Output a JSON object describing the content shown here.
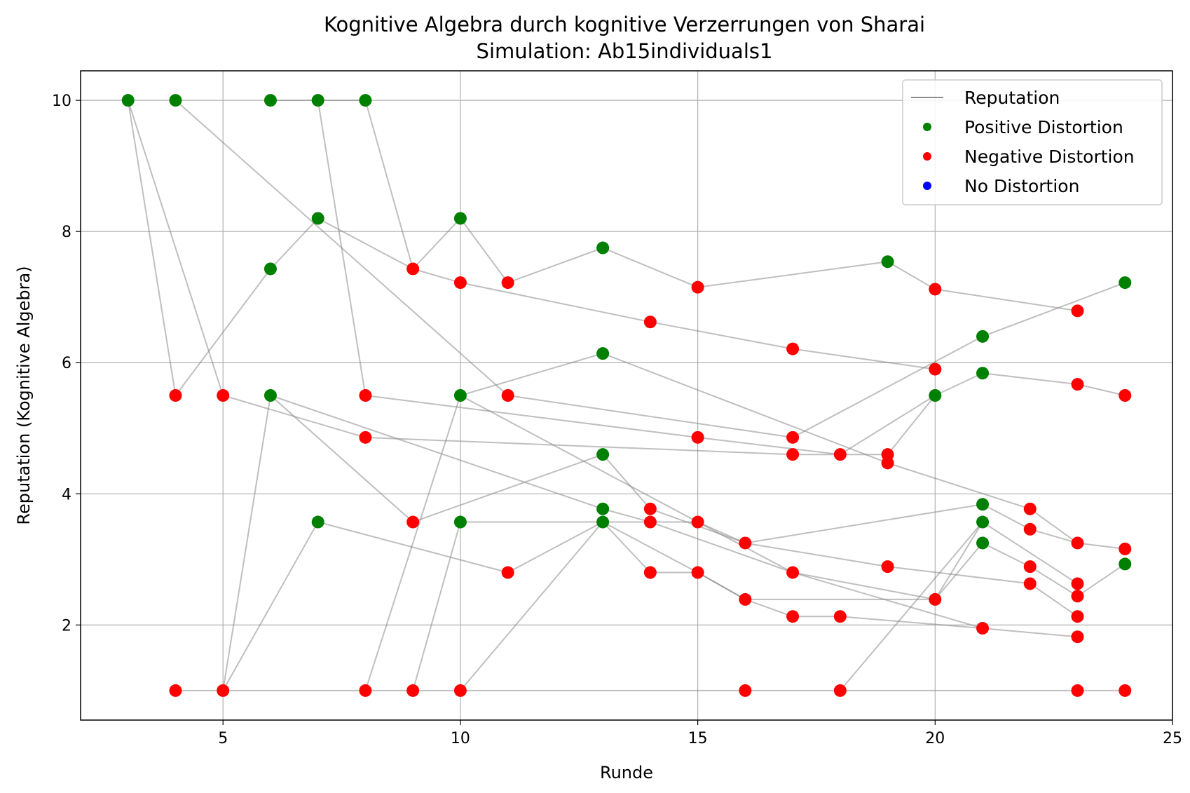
{
  "chart_data": {
    "type": "scatter",
    "title": "Kognitive Algebra durch kognitive Verzerrungen von Sharai",
    "subtitle": "Simulation: Ab15individuals1",
    "xlabel": "Runde",
    "ylabel": "Reputation (Kognitive Algebra)",
    "xlim": [
      2,
      25
    ],
    "ylim": [
      0.55,
      10.45
    ],
    "xticks": [
      5,
      10,
      15,
      20,
      25
    ],
    "yticks": [
      2,
      4,
      6,
      8,
      10
    ],
    "grid": true,
    "legend_position": "top-right",
    "legend": [
      {
        "label": "Reputation",
        "kind": "line",
        "color": "#808080"
      },
      {
        "label": "Positive Distortion",
        "kind": "dot",
        "color": "#008000"
      },
      {
        "label": "Negative Distortion",
        "kind": "dot",
        "color": "#ff0000"
      },
      {
        "label": "No Distortion",
        "kind": "dot",
        "color": "#0000ff"
      }
    ],
    "colors": {
      "positive": "#008000",
      "negative": "#ff0000",
      "none": "#0000ff",
      "line": "#808080"
    },
    "trajectories": [
      [
        [
          3,
          10
        ],
        [
          4,
          5.5
        ],
        [
          6,
          7.43
        ],
        [
          7,
          8.2
        ],
        [
          9,
          7.43
        ],
        [
          10,
          8.2
        ],
        [
          11,
          7.22
        ],
        [
          13,
          7.75
        ],
        [
          15,
          7.15
        ],
        [
          19,
          7.54
        ],
        [
          20,
          7.12
        ],
        [
          23,
          6.79
        ]
      ],
      [
        [
          3,
          10
        ],
        [
          5,
          5.5
        ],
        [
          8,
          4.86
        ],
        [
          17,
          4.6
        ],
        [
          18,
          4.6
        ],
        [
          19,
          4.6
        ],
        [
          20,
          5.5
        ],
        [
          21,
          5.84
        ],
        [
          23,
          5.67
        ],
        [
          24,
          5.5
        ]
      ],
      [
        [
          4,
          10
        ],
        [
          11,
          5.5
        ],
        [
          17,
          4.86
        ],
        [
          21,
          6.4
        ],
        [
          24,
          7.22
        ]
      ],
      [
        [
          6,
          10
        ],
        [
          7,
          10
        ],
        [
          8,
          10
        ],
        [
          9,
          7.43
        ],
        [
          10,
          7.22
        ],
        [
          14,
          6.62
        ],
        [
          17,
          6.21
        ],
        [
          20,
          5.9
        ]
      ],
      [
        [
          7,
          10
        ],
        [
          8,
          5.5
        ],
        [
          15,
          4.86
        ],
        [
          18,
          4.6
        ],
        [
          20,
          5.5
        ]
      ],
      [
        [
          5,
          1
        ],
        [
          6,
          5.5
        ],
        [
          9,
          3.57
        ],
        [
          13,
          4.6
        ],
        [
          14,
          3.77
        ],
        [
          16,
          3.25
        ],
        [
          21,
          3.84
        ],
        [
          22,
          3.46
        ],
        [
          23,
          3.25
        ],
        [
          24,
          3.16
        ]
      ],
      [
        [
          6,
          5.5
        ],
        [
          13,
          3.77
        ],
        [
          14,
          3.57
        ],
        [
          17,
          2.8
        ],
        [
          21,
          1.95
        ],
        [
          23,
          1.82
        ]
      ],
      [
        [
          5,
          1
        ],
        [
          7,
          3.57
        ],
        [
          11,
          2.8
        ],
        [
          13,
          3.57
        ],
        [
          14,
          2.8
        ],
        [
          15,
          2.8
        ],
        [
          16,
          2.39
        ],
        [
          17,
          2.13
        ],
        [
          18,
          2.13
        ],
        [
          21,
          1.95
        ]
      ],
      [
        [
          8,
          1
        ],
        [
          10,
          5.5
        ],
        [
          13,
          6.14
        ],
        [
          19,
          4.47
        ],
        [
          22,
          3.77
        ],
        [
          23,
          3.25
        ]
      ],
      [
        [
          9,
          1
        ],
        [
          10,
          3.57
        ],
        [
          15,
          3.57
        ],
        [
          16,
          3.25
        ],
        [
          19,
          2.89
        ],
        [
          22,
          2.63
        ],
        [
          23,
          2.13
        ]
      ],
      [
        [
          10,
          1
        ],
        [
          13,
          3.57
        ],
        [
          15,
          2.8
        ],
        [
          16,
          2.39
        ],
        [
          20,
          2.39
        ],
        [
          21,
          3.57
        ],
        [
          23,
          2.63
        ]
      ],
      [
        [
          10,
          5.5
        ],
        [
          15,
          3.57
        ],
        [
          17,
          2.8
        ],
        [
          20,
          2.39
        ],
        [
          21,
          3.25
        ],
        [
          22,
          2.89
        ],
        [
          23,
          2.44
        ],
        [
          24,
          2.93
        ]
      ],
      [
        [
          18,
          1
        ],
        [
          21,
          3.57
        ]
      ],
      [
        [
          4,
          1
        ],
        [
          24,
          1
        ]
      ]
    ],
    "points": [
      {
        "x": 3,
        "y": 10,
        "d": "pos"
      },
      {
        "x": 4,
        "y": 10,
        "d": "pos"
      },
      {
        "x": 6,
        "y": 10,
        "d": "pos"
      },
      {
        "x": 7,
        "y": 10,
        "d": "pos"
      },
      {
        "x": 8,
        "y": 10,
        "d": "pos"
      },
      {
        "x": 7,
        "y": 8.2,
        "d": "pos"
      },
      {
        "x": 10,
        "y": 8.2,
        "d": "pos"
      },
      {
        "x": 13,
        "y": 7.75,
        "d": "pos"
      },
      {
        "x": 19,
        "y": 7.54,
        "d": "pos"
      },
      {
        "x": 6,
        "y": 7.43,
        "d": "pos"
      },
      {
        "x": 24,
        "y": 7.22,
        "d": "pos"
      },
      {
        "x": 21,
        "y": 6.4,
        "d": "pos"
      },
      {
        "x": 13,
        "y": 6.14,
        "d": "pos"
      },
      {
        "x": 21,
        "y": 5.84,
        "d": "pos"
      },
      {
        "x": 6,
        "y": 5.5,
        "d": "pos"
      },
      {
        "x": 10,
        "y": 5.5,
        "d": "pos"
      },
      {
        "x": 20,
        "y": 5.5,
        "d": "pos"
      },
      {
        "x": 13,
        "y": 4.6,
        "d": "pos"
      },
      {
        "x": 21,
        "y": 3.84,
        "d": "pos"
      },
      {
        "x": 13,
        "y": 3.77,
        "d": "pos"
      },
      {
        "x": 7,
        "y": 3.57,
        "d": "pos"
      },
      {
        "x": 10,
        "y": 3.57,
        "d": "pos"
      },
      {
        "x": 13,
        "y": 3.57,
        "d": "pos"
      },
      {
        "x": 21,
        "y": 3.57,
        "d": "pos"
      },
      {
        "x": 21,
        "y": 3.25,
        "d": "pos"
      },
      {
        "x": 24,
        "y": 2.93,
        "d": "pos"
      },
      {
        "x": 9,
        "y": 7.43,
        "d": "neg"
      },
      {
        "x": 10,
        "y": 7.22,
        "d": "neg"
      },
      {
        "x": 11,
        "y": 7.22,
        "d": "neg"
      },
      {
        "x": 15,
        "y": 7.15,
        "d": "neg"
      },
      {
        "x": 20,
        "y": 7.12,
        "d": "neg"
      },
      {
        "x": 23,
        "y": 6.79,
        "d": "neg"
      },
      {
        "x": 14,
        "y": 6.62,
        "d": "neg"
      },
      {
        "x": 17,
        "y": 6.21,
        "d": "neg"
      },
      {
        "x": 20,
        "y": 5.9,
        "d": "neg"
      },
      {
        "x": 23,
        "y": 5.67,
        "d": "neg"
      },
      {
        "x": 4,
        "y": 5.5,
        "d": "neg"
      },
      {
        "x": 5,
        "y": 5.5,
        "d": "neg"
      },
      {
        "x": 8,
        "y": 5.5,
        "d": "neg"
      },
      {
        "x": 11,
        "y": 5.5,
        "d": "neg"
      },
      {
        "x": 24,
        "y": 5.5,
        "d": "neg"
      },
      {
        "x": 8,
        "y": 4.86,
        "d": "neg"
      },
      {
        "x": 15,
        "y": 4.86,
        "d": "neg"
      },
      {
        "x": 17,
        "y": 4.86,
        "d": "neg"
      },
      {
        "x": 17,
        "y": 4.6,
        "d": "neg"
      },
      {
        "x": 18,
        "y": 4.6,
        "d": "neg"
      },
      {
        "x": 19,
        "y": 4.6,
        "d": "neg"
      },
      {
        "x": 19,
        "y": 4.47,
        "d": "neg"
      },
      {
        "x": 14,
        "y": 3.77,
        "d": "neg"
      },
      {
        "x": 22,
        "y": 3.77,
        "d": "neg"
      },
      {
        "x": 9,
        "y": 3.57,
        "d": "neg"
      },
      {
        "x": 14,
        "y": 3.57,
        "d": "neg"
      },
      {
        "x": 15,
        "y": 3.57,
        "d": "neg"
      },
      {
        "x": 22,
        "y": 3.46,
        "d": "neg"
      },
      {
        "x": 16,
        "y": 3.25,
        "d": "neg"
      },
      {
        "x": 23,
        "y": 3.25,
        "d": "neg"
      },
      {
        "x": 24,
        "y": 3.16,
        "d": "neg"
      },
      {
        "x": 19,
        "y": 2.89,
        "d": "neg"
      },
      {
        "x": 22,
        "y": 2.89,
        "d": "neg"
      },
      {
        "x": 11,
        "y": 2.8,
        "d": "neg"
      },
      {
        "x": 14,
        "y": 2.8,
        "d": "neg"
      },
      {
        "x": 15,
        "y": 2.8,
        "d": "neg"
      },
      {
        "x": 17,
        "y": 2.8,
        "d": "neg"
      },
      {
        "x": 22,
        "y": 2.63,
        "d": "neg"
      },
      {
        "x": 23,
        "y": 2.63,
        "d": "neg"
      },
      {
        "x": 23,
        "y": 2.44,
        "d": "neg"
      },
      {
        "x": 16,
        "y": 2.39,
        "d": "neg"
      },
      {
        "x": 20,
        "y": 2.39,
        "d": "neg"
      },
      {
        "x": 17,
        "y": 2.13,
        "d": "neg"
      },
      {
        "x": 18,
        "y": 2.13,
        "d": "neg"
      },
      {
        "x": 23,
        "y": 2.13,
        "d": "neg"
      },
      {
        "x": 21,
        "y": 1.95,
        "d": "neg"
      },
      {
        "x": 23,
        "y": 1.82,
        "d": "neg"
      },
      {
        "x": 4,
        "y": 1,
        "d": "neg"
      },
      {
        "x": 5,
        "y": 1,
        "d": "neg"
      },
      {
        "x": 8,
        "y": 1,
        "d": "neg"
      },
      {
        "x": 9,
        "y": 1,
        "d": "neg"
      },
      {
        "x": 10,
        "y": 1,
        "d": "neg"
      },
      {
        "x": 16,
        "y": 1,
        "d": "neg"
      },
      {
        "x": 18,
        "y": 1,
        "d": "neg"
      },
      {
        "x": 23,
        "y": 1,
        "d": "neg"
      },
      {
        "x": 24,
        "y": 1,
        "d": "neg"
      }
    ]
  }
}
